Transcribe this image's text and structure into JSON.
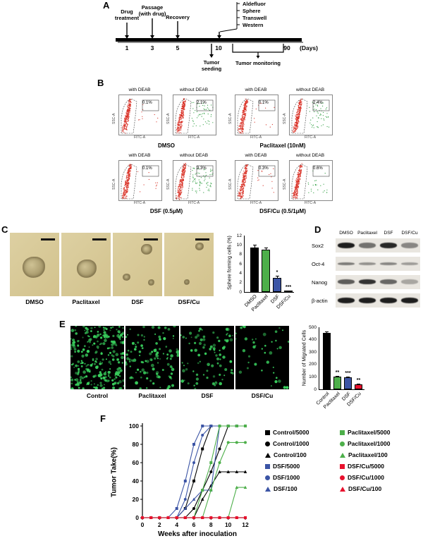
{
  "panelA": {
    "label": "A",
    "drug_treatment": "Drug\ntreatment",
    "passage": "Passage\n(with drug)",
    "recovery": "Recovery",
    "assays": [
      "Aldefluor",
      "Sphere",
      "Transwell",
      "Western"
    ],
    "days": [
      "1",
      "3",
      "5",
      "10",
      "90"
    ],
    "days_unit": "(Days)",
    "tumor_seeding": "Tumor\nseeding",
    "tumor_monitoring": "Tumor monitoring"
  },
  "panelB": {
    "label": "B",
    "axis": {
      "y": "SSC-A",
      "x": "FITC-A"
    },
    "plots": [
      {
        "deab": "with DEAB",
        "pct": "0.1%"
      },
      {
        "deab": "without DEAB",
        "pct": "2.1%"
      },
      {
        "deab": "with DEAB",
        "pct": "0.1%"
      },
      {
        "deab": "without DEAB",
        "pct": "2.4%"
      },
      {
        "deab": "with DEAB",
        "pct": "0.1%"
      },
      {
        "deab": "without DEAB",
        "pct": "3.3%"
      },
      {
        "deab": "with DEAB",
        "pct": "0.3%"
      },
      {
        "deab": "without DEAB",
        "pct": "0.6%"
      }
    ],
    "groups": [
      "DMSO",
      "Paclitaxel (10nM)",
      "DSF (0.5μM)",
      "DSF/Cu (0.5/1μM)"
    ]
  },
  "panelC": {
    "label": "C",
    "images": [
      "DMSO",
      "Paclitaxel",
      "DSF",
      "DSF/Cu"
    ]
  },
  "panelD": {
    "label": "D",
    "columns": [
      "DMSO",
      "Paclitaxel",
      "DSF",
      "DSF/Cu"
    ],
    "rows": [
      {
        "name": "Sox2",
        "intensities": [
          0.95,
          0.55,
          0.9,
          0.45
        ]
      },
      {
        "name": "Oct-4",
        "intensities": [
          0.5,
          0.4,
          0.45,
          0.35
        ]
      },
      {
        "name": "Nanog",
        "intensities": [
          0.65,
          0.85,
          0.6,
          0.3
        ]
      },
      {
        "name": "β-actin",
        "intensities": [
          0.95,
          0.95,
          0.95,
          0.95
        ]
      }
    ]
  },
  "panelE": {
    "label": "E",
    "images": [
      {
        "name": "Control",
        "dots": 260
      },
      {
        "name": "Paclitaxel",
        "dots": 110
      },
      {
        "name": "DSF",
        "dots": 90
      },
      {
        "name": "DSF/Cu",
        "dots": 40
      }
    ]
  },
  "panelF": {
    "label": "F"
  },
  "chart_data": [
    {
      "type": "bar",
      "title": "",
      "categories": [
        "DMSO",
        "Paclitaxel",
        "DSF",
        "DSF/Cu"
      ],
      "values": [
        9.5,
        9.0,
        3.0,
        0.2
      ],
      "errors": [
        0.5,
        0.5,
        0.4,
        0.1
      ],
      "colors": [
        "#000000",
        "#4daf4a",
        "#3b54a5",
        "#e8112d"
      ],
      "significance": [
        "",
        "",
        "*",
        "***"
      ],
      "xlabel": "",
      "ylabel": "Sphere forming cells (%)",
      "ylim": [
        0,
        12
      ],
      "yticks": [
        0,
        2,
        4,
        6,
        8,
        10,
        12
      ]
    },
    {
      "type": "bar",
      "title": "",
      "categories": [
        "Control",
        "Paclitaxel",
        "DSF",
        "DSF/Cu"
      ],
      "values": [
        455,
        100,
        95,
        40
      ],
      "errors": [
        12,
        10,
        10,
        6
      ],
      "colors": [
        "#000000",
        "#4daf4a",
        "#3b54a5",
        "#e8112d"
      ],
      "significance": [
        "",
        "**",
        "***",
        "**"
      ],
      "xlabel": "",
      "ylabel": "Number of Migrated Cells",
      "ylim": [
        0,
        500
      ],
      "yticks": [
        0,
        100,
        200,
        300,
        400,
        500
      ]
    },
    {
      "type": "line",
      "xlabel": "Weeks after inoculation",
      "ylabel": "Tumor Take(%)",
      "xlim": [
        0,
        12
      ],
      "ylim": [
        0,
        100
      ],
      "xticks": [
        0,
        2,
        4,
        6,
        8,
        10,
        12
      ],
      "yticks": [
        0,
        20,
        40,
        60,
        80,
        100
      ],
      "x": [
        0,
        1,
        2,
        3,
        4,
        5,
        6,
        7,
        8,
        9,
        10,
        11,
        12
      ],
      "series": [
        {
          "name": "Control/5000",
          "color": "#000000",
          "marker": "square",
          "values": [
            0,
            0,
            0,
            0,
            0,
            10,
            40,
            75,
            100,
            100,
            100,
            100,
            100
          ]
        },
        {
          "name": "Control/1000",
          "color": "#000000",
          "marker": "circle",
          "values": [
            0,
            0,
            0,
            0,
            0,
            0,
            10,
            30,
            50,
            75,
            100,
            100,
            100
          ]
        },
        {
          "name": "Control/100",
          "color": "#000000",
          "marker": "triangle",
          "values": [
            0,
            0,
            0,
            0,
            0,
            0,
            0,
            20,
            35,
            50,
            50,
            50,
            50
          ]
        },
        {
          "name": "DSF/5000",
          "color": "#3b54a5",
          "marker": "square",
          "values": [
            0,
            0,
            0,
            0,
            10,
            40,
            80,
            100,
            100,
            100,
            100,
            100,
            100
          ]
        },
        {
          "name": "DSF/1000",
          "color": "#3b54a5",
          "marker": "circle",
          "values": [
            0,
            0,
            0,
            0,
            0,
            20,
            60,
            90,
            100,
            100,
            100,
            100,
            100
          ]
        },
        {
          "name": "DSF/100",
          "color": "#3b54a5",
          "marker": "triangle",
          "values": [
            0,
            0,
            0,
            0,
            0,
            10,
            20,
            30,
            30,
            100,
            100,
            100,
            100
          ]
        },
        {
          "name": "Paclitaxel/5000",
          "color": "#4daf4a",
          "marker": "square",
          "values": [
            0,
            0,
            0,
            0,
            0,
            0,
            0,
            30,
            60,
            100,
            100,
            100,
            100
          ]
        },
        {
          "name": "Paclitaxel/1000",
          "color": "#4daf4a",
          "marker": "circle",
          "values": [
            0,
            0,
            0,
            0,
            0,
            0,
            0,
            0,
            30,
            60,
            82,
            82,
            82
          ]
        },
        {
          "name": "Paclitaxel/100",
          "color": "#4daf4a",
          "marker": "triangle",
          "values": [
            0,
            0,
            0,
            0,
            0,
            0,
            0,
            0,
            0,
            0,
            0,
            33,
            33
          ]
        },
        {
          "name": "DSF/Cu/5000",
          "color": "#e8112d",
          "marker": "square",
          "values": [
            0,
            0,
            0,
            0,
            0,
            0,
            0,
            0,
            0,
            0,
            0,
            0,
            0
          ]
        },
        {
          "name": "DSF/Cu/1000",
          "color": "#e8112d",
          "marker": "circle",
          "values": [
            0,
            0,
            0,
            0,
            0,
            0,
            0,
            0,
            0,
            0,
            0,
            0,
            0
          ]
        },
        {
          "name": "DSF/Cu/100",
          "color": "#e8112d",
          "marker": "triangle",
          "values": [
            0,
            0,
            0,
            0,
            0,
            0,
            0,
            0,
            0,
            0,
            0,
            0,
            0
          ]
        }
      ]
    }
  ]
}
